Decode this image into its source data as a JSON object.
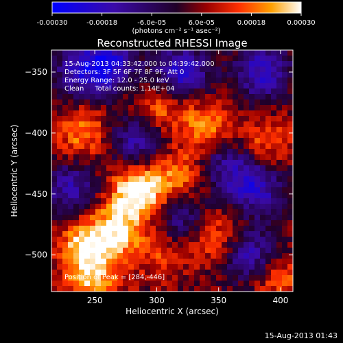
{
  "colorbar": {
    "ticks": [
      "-0.00030",
      "-0.00018",
      "-6.0e-05",
      "6.0e-05",
      "0.00018",
      "0.00030"
    ],
    "units_label": "(photons cm⁻² s⁻¹ asec⁻²)",
    "range": [
      -0.0003,
      0.0003
    ]
  },
  "chart_data": {
    "type": "heatmap",
    "title": "Reconstructed RHESSI Image",
    "xlabel": "Heliocentric X (arcsec)",
    "ylabel": "Heliocentric Y (arcsec)",
    "xlim": [
      215,
      410
    ],
    "ylim": [
      -530,
      -332
    ],
    "x_ticks": [
      250,
      300,
      350,
      400
    ],
    "y_ticks": [
      -350,
      -400,
      -450,
      -500
    ],
    "annotations": [
      "15-Aug-2013 04:33:42.000 to 04:39:42.000",
      "Detectors: 3F 5F 6F 7F 8F 9F, Att 0",
      "Energy Range: 12.0 - 25.0 keV",
      "Clean     Total counts: 1.14E+04"
    ],
    "peak_label": "Position of Peak = [284,-446]",
    "peak": [
      284,
      -446
    ],
    "hotspots": [
      {
        "x": 285,
        "y": -448,
        "level": 1.0
      },
      {
        "x": 242,
        "y": -495,
        "level": 0.8
      },
      {
        "x": 268,
        "y": -480,
        "level": 0.75
      },
      {
        "x": 340,
        "y": -395,
        "level": 0.6
      },
      {
        "x": 300,
        "y": -380,
        "level": 0.55
      },
      {
        "x": 240,
        "y": -400,
        "level": 0.55
      },
      {
        "x": 318,
        "y": -435,
        "level": 0.5
      },
      {
        "x": 348,
        "y": -485,
        "level": 0.5
      },
      {
        "x": 388,
        "y": -408,
        "level": 0.45
      },
      {
        "x": 398,
        "y": -520,
        "level": 0.45
      },
      {
        "x": 305,
        "y": -500,
        "level": 0.35
      },
      {
        "x": 250,
        "y": -525,
        "level": 0.6
      }
    ],
    "coldspots": [
      {
        "x": 260,
        "y": -345,
        "level": -0.9
      },
      {
        "x": 320,
        "y": -350,
        "level": -0.8
      },
      {
        "x": 385,
        "y": -350,
        "level": -0.75
      },
      {
        "x": 285,
        "y": -405,
        "level": -0.7
      },
      {
        "x": 380,
        "y": -445,
        "level": -0.75
      },
      {
        "x": 230,
        "y": -445,
        "level": -0.6
      },
      {
        "x": 375,
        "y": -500,
        "level": -0.7
      },
      {
        "x": 235,
        "y": -350,
        "level": -0.5
      },
      {
        "x": 320,
        "y": -470,
        "level": -0.55
      },
      {
        "x": 355,
        "y": -425,
        "level": -0.55
      }
    ]
  },
  "footer": {
    "timestamp": "15-Aug-2013 01:43"
  }
}
